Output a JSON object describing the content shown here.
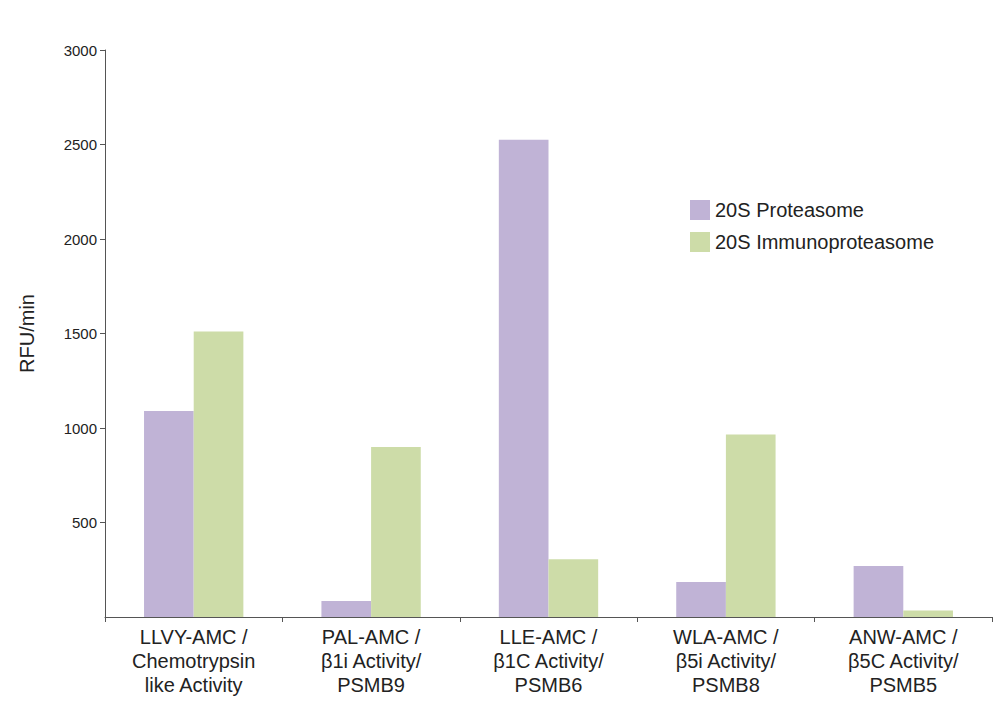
{
  "chart_data": {
    "type": "bar",
    "categories": [
      "LLVY-AMC /\nChemotrypsin\nlike Activity",
      "PAL-AMC /\nβ1i Activity/\nPSMB9",
      "LLE-AMC /\nβ1C Activity/\nPSMB6",
      "WLA-AMC /\nβ5i Activity/\nPSMB8",
      "ANW-AMC /\nβ5C Activity/\nPSMB5"
    ],
    "series": [
      {
        "name": "20S Proteasome",
        "color": "#c0b3d6",
        "values": [
          1090,
          85,
          2525,
          185,
          270
        ]
      },
      {
        "name": "20S Immunoproteasome",
        "color": "#cddca8",
        "values": [
          1510,
          900,
          305,
          965,
          35
        ]
      }
    ],
    "y_label": "RFU/min",
    "ylim": [
      0,
      3000
    ],
    "yticks": [
      500,
      1000,
      1500,
      2000,
      2500,
      3000
    ],
    "grid": false,
    "legend": "upper right"
  }
}
